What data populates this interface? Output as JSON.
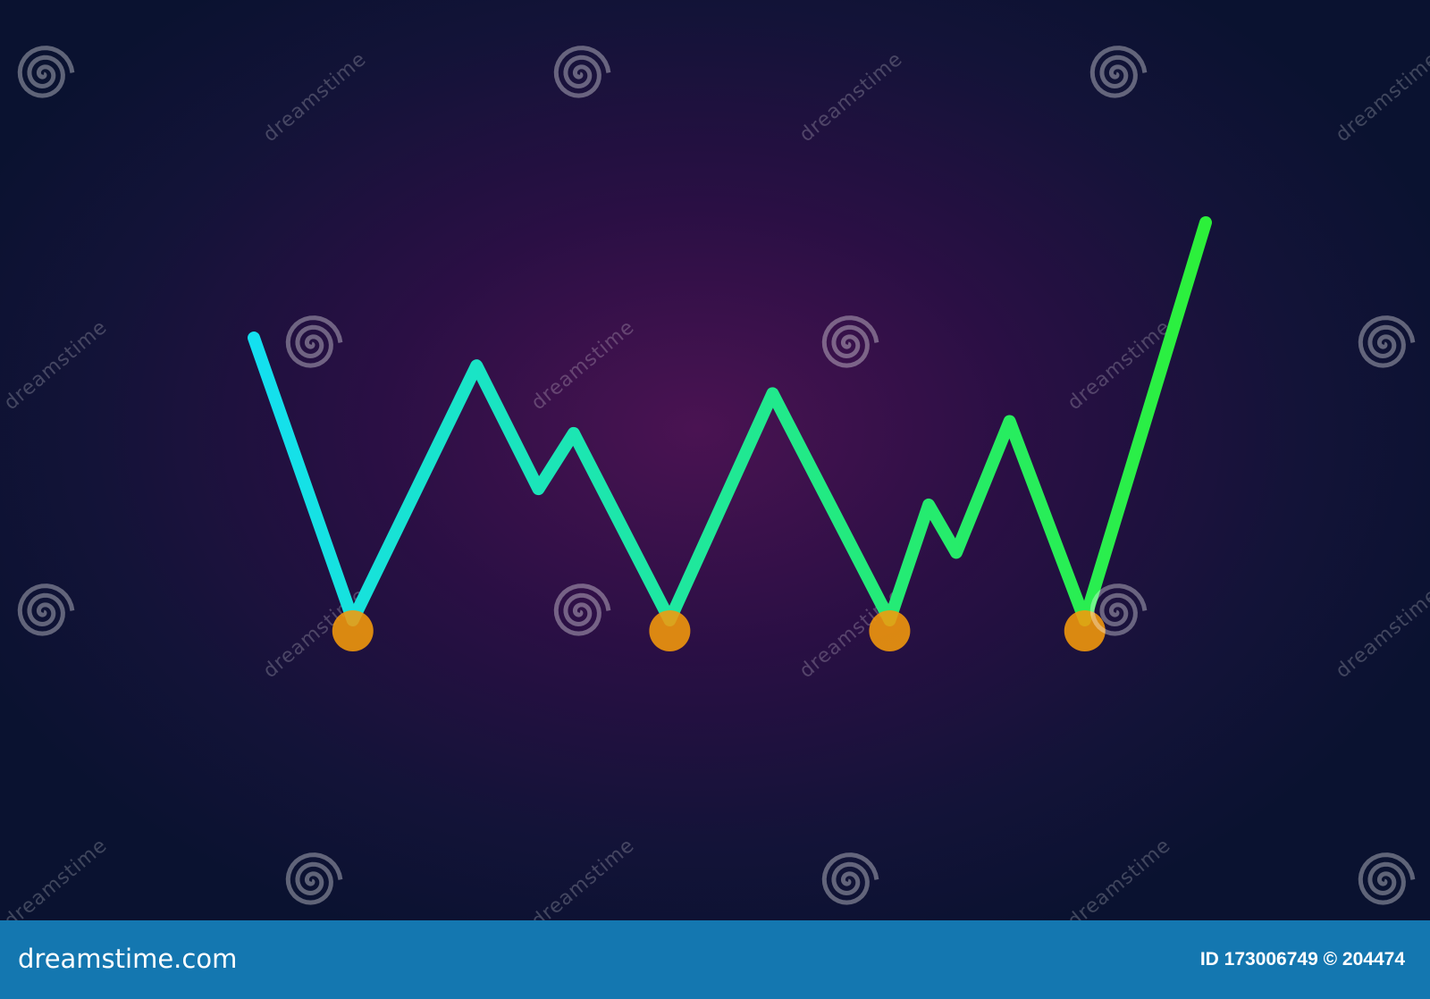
{
  "chart_data": {
    "type": "line",
    "title": "",
    "xlabel": "",
    "ylabel": "",
    "axes_visible": false,
    "grid": false,
    "series": [
      {
        "x": [
          0,
          10.4,
          23.4,
          29.9,
          33.6,
          43.7,
          54.5,
          66.8,
          70.9,
          73.8,
          79.4,
          87.3,
          100
        ],
        "values": [
          71,
          0,
          64,
          33,
          47,
          0,
          57,
          0,
          29,
          17,
          50,
          0,
          100
        ],
        "color_start": "#14e0f0",
        "color_end": "#2cf03a"
      }
    ],
    "support_level": 0,
    "support_color_start": "#9c0872",
    "support_color_end": "#e8145e",
    "touch_points_x": [
      10.4,
      43.7,
      66.8,
      87.3
    ],
    "touch_point_color": "#f59a0b",
    "xlim": [
      0,
      100
    ],
    "ylim": [
      0,
      100
    ]
  },
  "watermark": {
    "text": "dreamstime",
    "icon": "spiral-icon"
  },
  "footer": {
    "brand": "dreamstime.com",
    "id_text": "ID 173006749 © 204474",
    "background": "#1477b0"
  }
}
